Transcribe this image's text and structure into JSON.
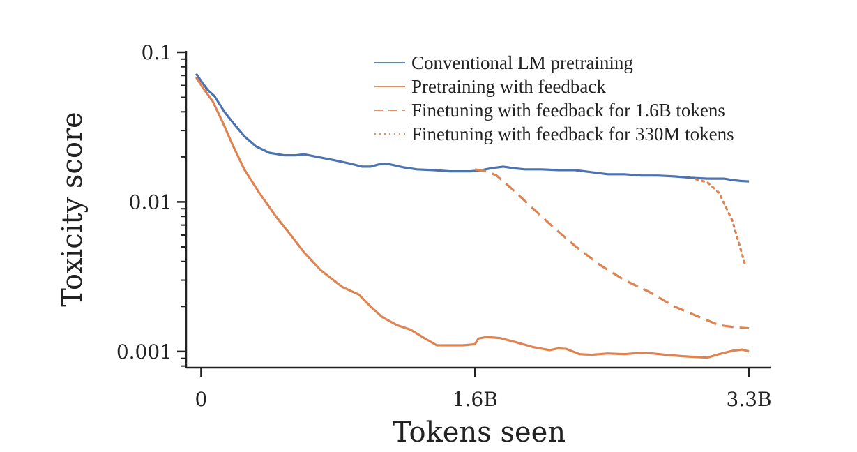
{
  "chart_data": {
    "type": "line",
    "title": "",
    "xlabel": "Tokens seen",
    "ylabel": "Toxicity score",
    "yscale": "log",
    "ylim": [
      0.00078,
      0.12
    ],
    "xlim": [
      -0.09,
      3.43
    ],
    "x_unit": "billion tokens",
    "y_ticks": [
      {
        "value": 0.1,
        "label": "0.1"
      },
      {
        "value": 0.01,
        "label": "0.01"
      },
      {
        "value": 0.001,
        "label": "0.001"
      }
    ],
    "x_ticks": [
      {
        "value": 0,
        "label": "0"
      },
      {
        "value": 1.65,
        "label": "1.6B"
      },
      {
        "value": 3.3,
        "label": "3.3B"
      }
    ],
    "grid": false,
    "legend_position": "top-right",
    "series": [
      {
        "name": "Conventional LM pretraining",
        "color": "#4c72b0",
        "style": "solid",
        "x": [
          -0.03,
          0.01,
          0.04,
          0.08,
          0.14,
          0.2,
          0.26,
          0.33,
          0.41,
          0.5,
          0.57,
          0.62,
          0.7,
          0.8,
          0.9,
          0.97,
          1.02,
          1.07,
          1.12,
          1.17,
          1.22,
          1.3,
          1.4,
          1.5,
          1.56,
          1.62,
          1.68,
          1.75,
          1.82,
          1.88,
          1.95,
          2.05,
          2.15,
          2.25,
          2.35,
          2.45,
          2.55,
          2.65,
          2.75,
          2.85,
          2.95,
          3.05,
          3.15,
          3.2,
          3.25,
          3.3
        ],
        "values": [
          0.072,
          0.062,
          0.056,
          0.051,
          0.04,
          0.033,
          0.0275,
          0.0235,
          0.0213,
          0.0205,
          0.0205,
          0.0208,
          0.02,
          0.019,
          0.018,
          0.0172,
          0.0172,
          0.0178,
          0.018,
          0.0175,
          0.017,
          0.0165,
          0.0163,
          0.016,
          0.016,
          0.016,
          0.0162,
          0.0168,
          0.0172,
          0.0168,
          0.0165,
          0.0165,
          0.0163,
          0.0163,
          0.0158,
          0.0153,
          0.0153,
          0.015,
          0.015,
          0.0148,
          0.0145,
          0.0143,
          0.0143,
          0.014,
          0.0138,
          0.0137
        ]
      },
      {
        "name": "Pretraining with feedback",
        "color": "#dd8452",
        "style": "solid",
        "x": [
          -0.03,
          0.01,
          0.07,
          0.13,
          0.19,
          0.26,
          0.35,
          0.45,
          0.54,
          0.62,
          0.72,
          0.85,
          0.95,
          1.02,
          1.09,
          1.18,
          1.26,
          1.36,
          1.42,
          1.5,
          1.58,
          1.65,
          1.67,
          1.72,
          1.8,
          1.9,
          2.0,
          2.1,
          2.15,
          2.2,
          2.28,
          2.35,
          2.45,
          2.55,
          2.65,
          2.72,
          2.8,
          2.9,
          2.97,
          3.05,
          3.12,
          3.2,
          3.26,
          3.3
        ],
        "values": [
          0.068,
          0.058,
          0.047,
          0.034,
          0.024,
          0.0165,
          0.0115,
          0.008,
          0.006,
          0.0046,
          0.0035,
          0.0027,
          0.0024,
          0.002,
          0.0017,
          0.0015,
          0.0014,
          0.0012,
          0.0011,
          0.0011,
          0.0011,
          0.00112,
          0.00122,
          0.00125,
          0.00123,
          0.00115,
          0.00107,
          0.00102,
          0.00105,
          0.00104,
          0.00096,
          0.00095,
          0.00097,
          0.00096,
          0.00098,
          0.00097,
          0.00095,
          0.00093,
          0.00092,
          0.00091,
          0.00096,
          0.00101,
          0.00103,
          0.001
        ]
      },
      {
        "name": "Finetuning with feedback for 1.6B tokens",
        "color": "#dd8452",
        "style": "dashed",
        "x": [
          1.65,
          1.72,
          1.78,
          1.88,
          2.0,
          2.12,
          2.25,
          2.4,
          2.55,
          2.7,
          2.85,
          3.0,
          3.12,
          3.22,
          3.3
        ],
        "values": [
          0.0165,
          0.016,
          0.015,
          0.012,
          0.009,
          0.0068,
          0.0051,
          0.0038,
          0.003,
          0.0025,
          0.002,
          0.0017,
          0.0015,
          0.00145,
          0.00143
        ]
      },
      {
        "name": "Finetuning with feedback for 330M tokens",
        "color": "#dd8452",
        "style": "dotted",
        "x": [
          2.98,
          3.05,
          3.12,
          3.2,
          3.28
        ],
        "values": [
          0.0142,
          0.0135,
          0.0115,
          0.0075,
          0.0037
        ]
      }
    ]
  }
}
